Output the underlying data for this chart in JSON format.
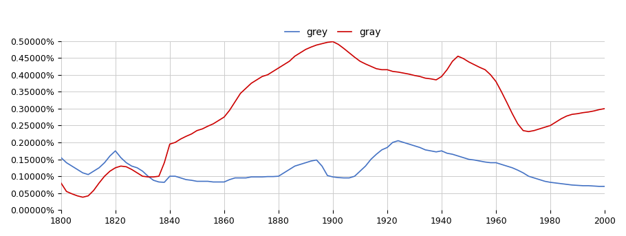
{
  "title": "",
  "legend_labels": [
    "grey",
    "gray"
  ],
  "line_colors": [
    "#4472C4",
    "#CC0000"
  ],
  "xlim": [
    1800,
    2000
  ],
  "ylim": [
    0.0,
    5e-05
  ],
  "xticks": [
    1800,
    1820,
    1840,
    1860,
    1880,
    1900,
    1920,
    1940,
    1960,
    1980,
    2000
  ],
  "yticks": [
    0.0,
    5e-06,
    1e-05,
    1.5e-05,
    2e-05,
    2.5e-05,
    3e-05,
    3.5e-05,
    4e-05,
    4.5e-05,
    5e-05
  ],
  "grey_data": [
    [
      1800,
      1.55e-05
    ],
    [
      1802,
      1.4e-05
    ],
    [
      1804,
      1.3e-05
    ],
    [
      1806,
      1.2e-05
    ],
    [
      1808,
      1.1e-05
    ],
    [
      1810,
      1.05e-05
    ],
    [
      1812,
      1.15e-05
    ],
    [
      1814,
      1.25e-05
    ],
    [
      1816,
      1.4e-05
    ],
    [
      1818,
      1.6e-05
    ],
    [
      1820,
      1.75e-05
    ],
    [
      1822,
      1.55e-05
    ],
    [
      1824,
      1.4e-05
    ],
    [
      1826,
      1.3e-05
    ],
    [
      1828,
      1.25e-05
    ],
    [
      1830,
      1.15e-05
    ],
    [
      1832,
      1e-05
    ],
    [
      1834,
      8.8e-06
    ],
    [
      1836,
      8.3e-06
    ],
    [
      1838,
      8.2e-06
    ],
    [
      1840,
      1e-05
    ],
    [
      1842,
      1e-05
    ],
    [
      1844,
      9.5e-06
    ],
    [
      1846,
      9e-06
    ],
    [
      1848,
      8.8e-06
    ],
    [
      1850,
      8.5e-06
    ],
    [
      1852,
      8.5e-06
    ],
    [
      1854,
      8.5e-06
    ],
    [
      1856,
      8.3e-06
    ],
    [
      1858,
      8.3e-06
    ],
    [
      1860,
      8.3e-06
    ],
    [
      1862,
      9e-06
    ],
    [
      1864,
      9.5e-06
    ],
    [
      1866,
      9.5e-06
    ],
    [
      1868,
      9.5e-06
    ],
    [
      1870,
      9.8e-06
    ],
    [
      1872,
      9.8e-06
    ],
    [
      1874,
      9.8e-06
    ],
    [
      1876,
      9.9e-06
    ],
    [
      1878,
      9.9e-06
    ],
    [
      1880,
      1e-05
    ],
    [
      1882,
      1.1e-05
    ],
    [
      1884,
      1.2e-05
    ],
    [
      1886,
      1.3e-05
    ],
    [
      1888,
      1.35e-05
    ],
    [
      1890,
      1.4e-05
    ],
    [
      1892,
      1.45e-05
    ],
    [
      1894,
      1.48e-05
    ],
    [
      1896,
      1.3e-05
    ],
    [
      1898,
      1.02e-05
    ],
    [
      1900,
      9.8e-06
    ],
    [
      1902,
      9.6e-06
    ],
    [
      1904,
      9.5e-06
    ],
    [
      1906,
      9.5e-06
    ],
    [
      1908,
      1e-05
    ],
    [
      1910,
      1.15e-05
    ],
    [
      1912,
      1.3e-05
    ],
    [
      1914,
      1.5e-05
    ],
    [
      1916,
      1.65e-05
    ],
    [
      1918,
      1.78e-05
    ],
    [
      1920,
      1.85e-05
    ],
    [
      1922,
      2e-05
    ],
    [
      1924,
      2.05e-05
    ],
    [
      1926,
      2e-05
    ],
    [
      1928,
      1.95e-05
    ],
    [
      1930,
      1.9e-05
    ],
    [
      1932,
      1.85e-05
    ],
    [
      1934,
      1.78e-05
    ],
    [
      1936,
      1.75e-05
    ],
    [
      1938,
      1.72e-05
    ],
    [
      1940,
      1.75e-05
    ],
    [
      1942,
      1.68e-05
    ],
    [
      1944,
      1.65e-05
    ],
    [
      1946,
      1.6e-05
    ],
    [
      1948,
      1.55e-05
    ],
    [
      1950,
      1.5e-05
    ],
    [
      1952,
      1.48e-05
    ],
    [
      1954,
      1.45e-05
    ],
    [
      1956,
      1.42e-05
    ],
    [
      1958,
      1.4e-05
    ],
    [
      1960,
      1.4e-05
    ],
    [
      1962,
      1.35e-05
    ],
    [
      1964,
      1.3e-05
    ],
    [
      1966,
      1.25e-05
    ],
    [
      1968,
      1.18e-05
    ],
    [
      1970,
      1.1e-05
    ],
    [
      1972,
      1e-05
    ],
    [
      1974,
      9.5e-06
    ],
    [
      1976,
      9e-06
    ],
    [
      1978,
      8.5e-06
    ],
    [
      1980,
      8.2e-06
    ],
    [
      1982,
      8e-06
    ],
    [
      1984,
      7.8e-06
    ],
    [
      1986,
      7.6e-06
    ],
    [
      1988,
      7.4e-06
    ],
    [
      1990,
      7.3e-06
    ],
    [
      1992,
      7.2e-06
    ],
    [
      1994,
      7.2e-06
    ],
    [
      1996,
      7.1e-06
    ],
    [
      1998,
      7e-06
    ],
    [
      2000,
      7e-06
    ]
  ],
  "gray_data": [
    [
      1800,
      8e-06
    ],
    [
      1802,
      5.5e-06
    ],
    [
      1804,
      4.8e-06
    ],
    [
      1806,
      4.2e-06
    ],
    [
      1808,
      3.8e-06
    ],
    [
      1810,
      4.2e-06
    ],
    [
      1812,
      5.8e-06
    ],
    [
      1814,
      8e-06
    ],
    [
      1816,
      1e-05
    ],
    [
      1818,
      1.15e-05
    ],
    [
      1820,
      1.25e-05
    ],
    [
      1822,
      1.3e-05
    ],
    [
      1824,
      1.28e-05
    ],
    [
      1826,
      1.2e-05
    ],
    [
      1828,
      1.1e-05
    ],
    [
      1830,
      1e-05
    ],
    [
      1832,
      9.8e-06
    ],
    [
      1834,
      9.8e-06
    ],
    [
      1836,
      1e-05
    ],
    [
      1838,
      1.4e-05
    ],
    [
      1840,
      1.95e-05
    ],
    [
      1842,
      2e-05
    ],
    [
      1844,
      2.1e-05
    ],
    [
      1846,
      2.18e-05
    ],
    [
      1848,
      2.25e-05
    ],
    [
      1850,
      2.35e-05
    ],
    [
      1852,
      2.4e-05
    ],
    [
      1854,
      2.48e-05
    ],
    [
      1856,
      2.55e-05
    ],
    [
      1858,
      2.65e-05
    ],
    [
      1860,
      2.75e-05
    ],
    [
      1862,
      2.95e-05
    ],
    [
      1864,
      3.2e-05
    ],
    [
      1866,
      3.45e-05
    ],
    [
      1868,
      3.6e-05
    ],
    [
      1870,
      3.75e-05
    ],
    [
      1872,
      3.85e-05
    ],
    [
      1874,
      3.95e-05
    ],
    [
      1876,
      4e-05
    ],
    [
      1878,
      4.1e-05
    ],
    [
      1880,
      4.2e-05
    ],
    [
      1882,
      4.3e-05
    ],
    [
      1884,
      4.4e-05
    ],
    [
      1886,
      4.55e-05
    ],
    [
      1888,
      4.65e-05
    ],
    [
      1890,
      4.75e-05
    ],
    [
      1892,
      4.82e-05
    ],
    [
      1894,
      4.88e-05
    ],
    [
      1896,
      4.92e-05
    ],
    [
      1898,
      4.96e-05
    ],
    [
      1900,
      4.98e-05
    ],
    [
      1902,
      4.9e-05
    ],
    [
      1904,
      4.78e-05
    ],
    [
      1906,
      4.65e-05
    ],
    [
      1908,
      4.52e-05
    ],
    [
      1910,
      4.4e-05
    ],
    [
      1912,
      4.32e-05
    ],
    [
      1914,
      4.25e-05
    ],
    [
      1916,
      4.18e-05
    ],
    [
      1918,
      4.15e-05
    ],
    [
      1920,
      4.15e-05
    ],
    [
      1922,
      4.1e-05
    ],
    [
      1924,
      4.08e-05
    ],
    [
      1926,
      4.05e-05
    ],
    [
      1928,
      4.02e-05
    ],
    [
      1930,
      3.98e-05
    ],
    [
      1932,
      3.95e-05
    ],
    [
      1934,
      3.9e-05
    ],
    [
      1936,
      3.88e-05
    ],
    [
      1938,
      3.85e-05
    ],
    [
      1940,
      3.95e-05
    ],
    [
      1942,
      4.15e-05
    ],
    [
      1944,
      4.4e-05
    ],
    [
      1946,
      4.55e-05
    ],
    [
      1948,
      4.48e-05
    ],
    [
      1950,
      4.38e-05
    ],
    [
      1952,
      4.3e-05
    ],
    [
      1954,
      4.22e-05
    ],
    [
      1956,
      4.15e-05
    ],
    [
      1958,
      4e-05
    ],
    [
      1960,
      3.8e-05
    ],
    [
      1962,
      3.5e-05
    ],
    [
      1964,
      3.18e-05
    ],
    [
      1966,
      2.85e-05
    ],
    [
      1968,
      2.55e-05
    ],
    [
      1970,
      2.35e-05
    ],
    [
      1972,
      2.32e-05
    ],
    [
      1974,
      2.35e-05
    ],
    [
      1976,
      2.4e-05
    ],
    [
      1978,
      2.45e-05
    ],
    [
      1980,
      2.5e-05
    ],
    [
      1982,
      2.6e-05
    ],
    [
      1984,
      2.7e-05
    ],
    [
      1986,
      2.78e-05
    ],
    [
      1988,
      2.83e-05
    ],
    [
      1990,
      2.85e-05
    ],
    [
      1992,
      2.88e-05
    ],
    [
      1994,
      2.9e-05
    ],
    [
      1996,
      2.93e-05
    ],
    [
      1998,
      2.97e-05
    ],
    [
      2000,
      3e-05
    ]
  ],
  "background_color": "#ffffff",
  "grid_color": "#cccccc",
  "tick_fontsize": 9,
  "legend_fontsize": 10
}
